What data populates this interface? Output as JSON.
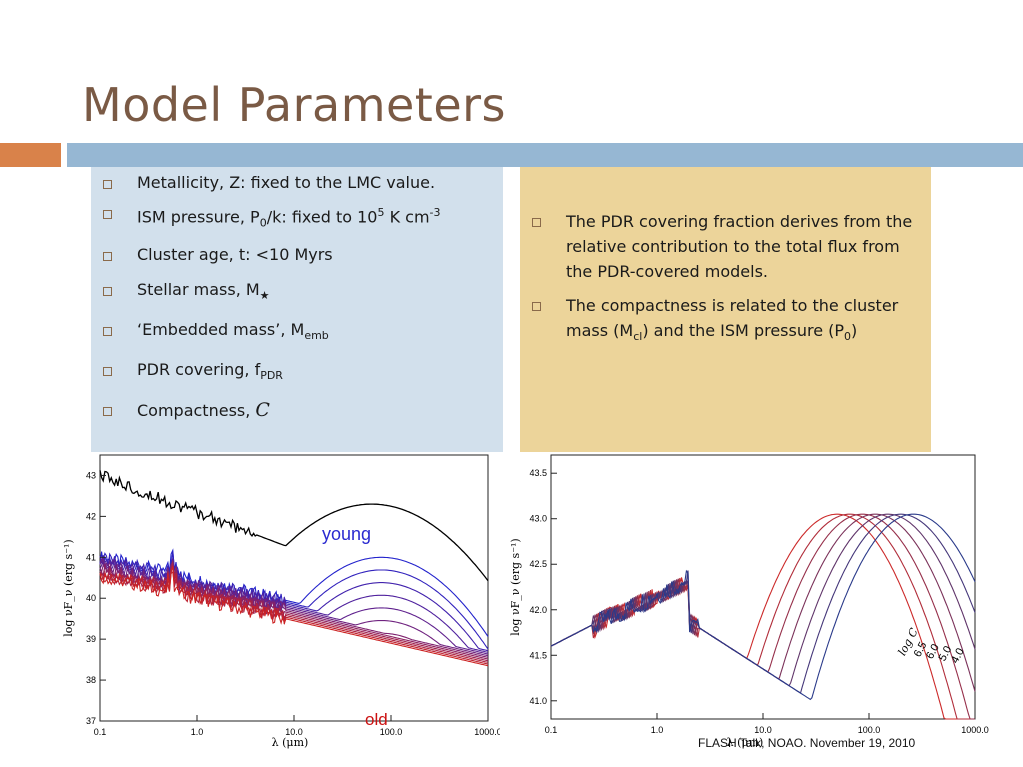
{
  "slide": {
    "title": "Model Parameters",
    "left_items": [
      {
        "text": "Metallicity, Z: fixed to the LMC value."
      },
      {
        "text": "ISM pressure, P",
        "sub": "0",
        "text2": "/k: fixed to 10",
        "sup": "5",
        "text3": " K cm",
        "sup2": "-3"
      },
      {
        "text": "Cluster age, t: <10 Myrs"
      },
      {
        "text": "Stellar mass, M",
        "sub": "★"
      },
      {
        "text": "‘Embedded mass’, M",
        "sub": "emb"
      },
      {
        "text": "PDR covering, f",
        "sub": "PDR"
      },
      {
        "text": "Compactness, ",
        "italic": "C"
      }
    ],
    "right_items": [
      {
        "text": "The PDR covering fraction derives from the relative contribution to the total flux from the PDR-covered models."
      },
      {
        "text": "The compactness is related to the cluster mass (M",
        "sub": "cl",
        "text2": ") and the ISM pressure (P",
        "sub2": "0",
        "text3": ")"
      }
    ],
    "footer": "FLASH Talk, NOAO. November 19, 2010"
  },
  "chart_data": [
    {
      "type": "line",
      "title": "",
      "xlabel": "λ (μm)",
      "ylabel": "log νF_ν (erg s⁻¹)",
      "xscale": "log",
      "xlim": [
        0.1,
        1000.0
      ],
      "ylim": [
        37,
        43.5
      ],
      "xticks": [
        "0.1",
        "1.0",
        "10.0",
        "100.0",
        "1000.0"
      ],
      "yticks": [
        "37",
        "38",
        "39",
        "40",
        "41",
        "42",
        "43"
      ],
      "annotations": [
        "young",
        "old"
      ],
      "colors": {
        "young": "#2222cc",
        "old": "#cc2222",
        "embedded": "#000000"
      }
    },
    {
      "type": "line",
      "title": "",
      "xlabel": "λ (μm)",
      "ylabel": "log νF_ν (erg s⁻¹)",
      "xscale": "log",
      "xlim": [
        0.1,
        1000.0
      ],
      "ylim": [
        40.8,
        43.7
      ],
      "xticks": [
        "0.1",
        "1.0",
        "10.0",
        "100.0",
        "1000.0"
      ],
      "yticks": [
        "41.0",
        "41.5",
        "42.0",
        "42.5",
        "43.0",
        "43.5"
      ],
      "compactness_labels": [
        "4.0",
        "5.0",
        "6.0",
        "6.5"
      ],
      "compactness_axis_label": "log C"
    }
  ]
}
